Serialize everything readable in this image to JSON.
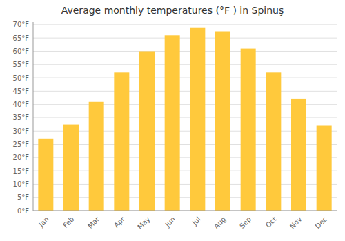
{
  "chart_data": {
    "type": "bar",
    "title": "Average monthly temperatures (°F ) in Spinuş",
    "categories": [
      "Jan",
      "Feb",
      "Mar",
      "Apr",
      "May",
      "Jun",
      "Jul",
      "Aug",
      "Sep",
      "Oct",
      "Nov",
      "Dec"
    ],
    "values": [
      27,
      32.5,
      41,
      52,
      60,
      66,
      69,
      67.5,
      61,
      52,
      42,
      32
    ],
    "color": "#FFC93C",
    "ylim": [
      0,
      71
    ],
    "yticks": [
      {
        "value": 0,
        "label": "0°F"
      },
      {
        "value": 5,
        "label": "5°F"
      },
      {
        "value": 10,
        "label": "10°F"
      },
      {
        "value": 15,
        "label": "15°F"
      },
      {
        "value": 20,
        "label": "20°F"
      },
      {
        "value": 25,
        "label": "25°F"
      },
      {
        "value": 30,
        "label": "30°F"
      },
      {
        "value": 35,
        "label": "35°F"
      },
      {
        "value": 40,
        "label": "40°F"
      },
      {
        "value": 45,
        "label": "45°F"
      },
      {
        "value": 50,
        "label": "50°F"
      },
      {
        "value": 55,
        "label": "55°F"
      },
      {
        "value": 60,
        "label": "60°F"
      },
      {
        "value": 65,
        "label": "65°F"
      },
      {
        "value": 70,
        "label": "70°F"
      }
    ],
    "grid": true
  }
}
